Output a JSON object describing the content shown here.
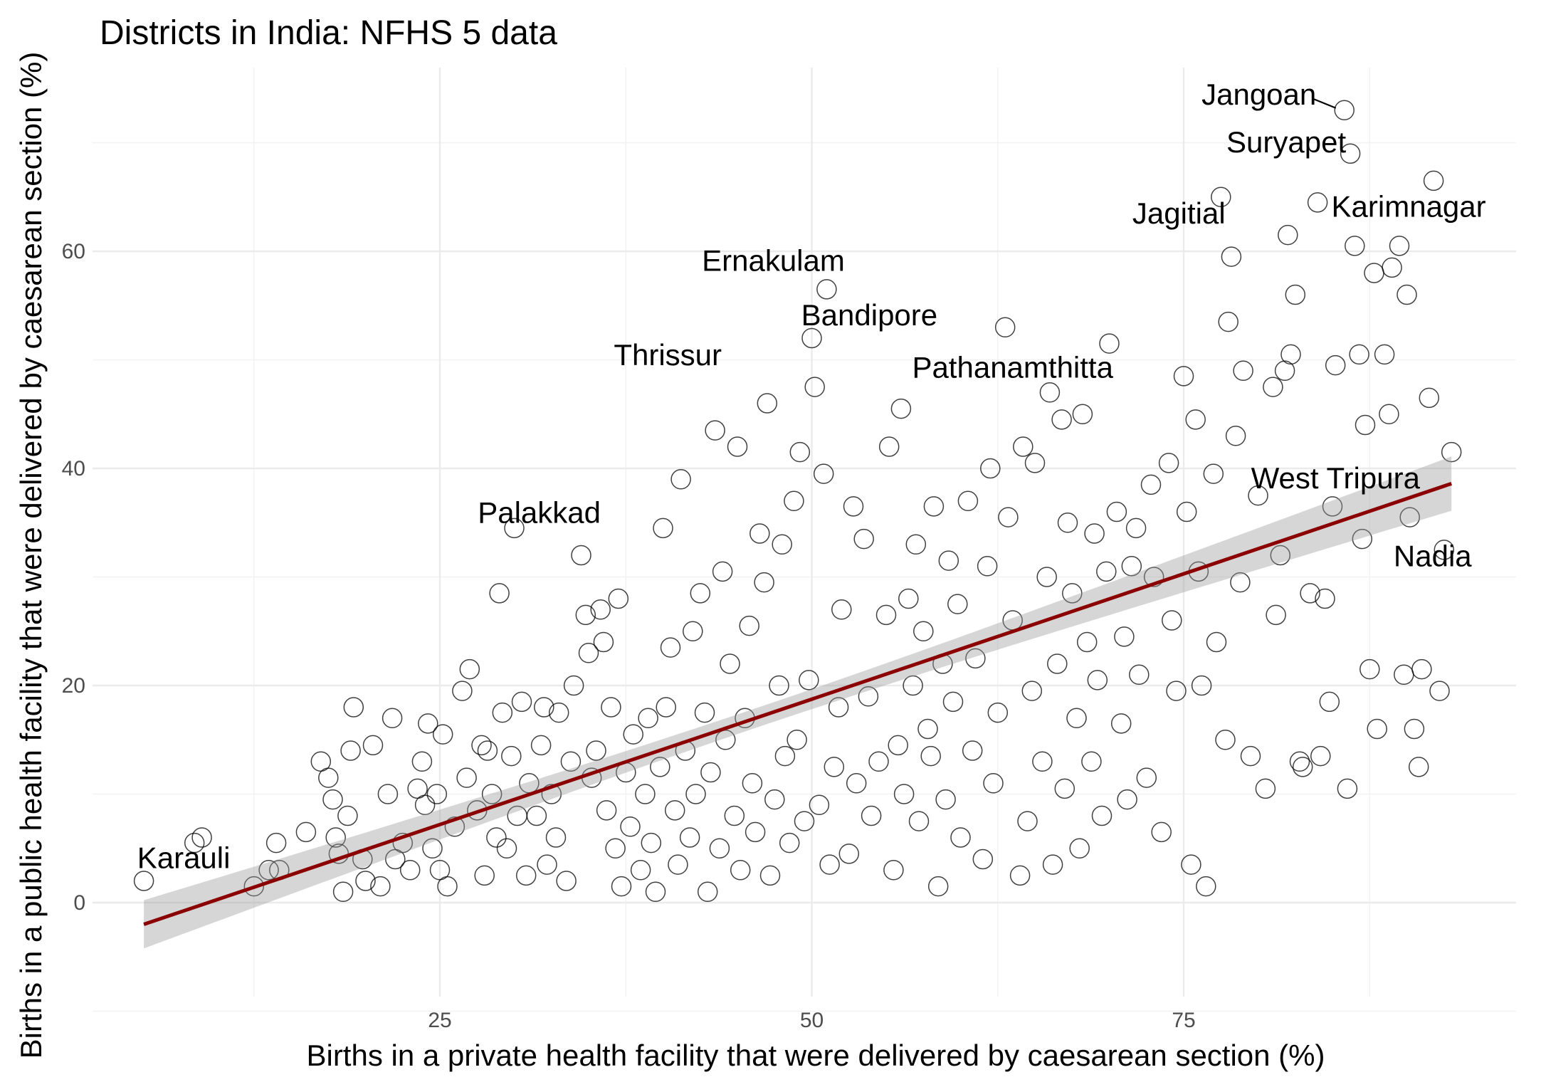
{
  "chart_data": {
    "type": "scatter",
    "title": "Districts in India: NFHS 5 data",
    "xlabel": "Births in a private health facility that were delivered by caesarean section (%)",
    "ylabel": "Births in a public health facility that were delivered by caesarean section (%)",
    "xlim": [
      5,
      95
    ],
    "ylim": [
      -10,
      77
    ],
    "x_ticks": [
      25,
      50,
      75
    ],
    "y_ticks": [
      0,
      20,
      40,
      60
    ],
    "grid": true,
    "trend": {
      "method": "linear regression with confidence band",
      "color": "#8b0000",
      "x_range": [
        5.1,
        93.0
      ],
      "y_at_start": -2.0,
      "y_at_end": 38.6,
      "band_halfwidth_at_ends": 2.5,
      "band_halfwidth_at_mean": 0.9,
      "x_mean": 46
    },
    "labels": [
      {
        "text": "Jangoan",
        "x": 85.8,
        "y": 73.0
      },
      {
        "text": "Suryapet",
        "x": 86.2,
        "y": 69.0
      },
      {
        "text": "Karimnagar",
        "x": 84.0,
        "y": 64.5
      },
      {
        "text": "Jagitial",
        "x": 77.5,
        "y": 65.0
      },
      {
        "text": "Ernakulam",
        "x": 50.0,
        "y": 56.5
      },
      {
        "text": "Bandipore",
        "x": 61.0,
        "y": 53.0
      },
      {
        "text": "Pathanamthitta",
        "x": 68.0,
        "y": 51.5
      },
      {
        "text": "Thrissur",
        "x": 43.0,
        "y": 52.0
      },
      {
        "text": "Palakkad",
        "x": 29.0,
        "y": 35.0
      },
      {
        "text": "West Tripura",
        "x": 92.0,
        "y": 41.0
      },
      {
        "text": "Nadia",
        "x": 91.5,
        "y": 32.5
      },
      {
        "text": "Karauli",
        "x": 5.1,
        "y": 2.0
      }
    ],
    "points": [
      [
        5.1,
        2.0
      ],
      [
        8.5,
        5.5
      ],
      [
        9.0,
        6.0
      ],
      [
        12.5,
        1.5
      ],
      [
        13.5,
        3.0
      ],
      [
        14.0,
        5.5
      ],
      [
        14.2,
        3.0
      ],
      [
        16.0,
        6.5
      ],
      [
        17.0,
        13.0
      ],
      [
        17.5,
        11.5
      ],
      [
        17.8,
        9.5
      ],
      [
        18.0,
        6.0
      ],
      [
        18.2,
        4.5
      ],
      [
        18.5,
        1.0
      ],
      [
        18.8,
        8.0
      ],
      [
        19.0,
        14.0
      ],
      [
        19.2,
        18.0
      ],
      [
        19.8,
        4.0
      ],
      [
        20.0,
        2.0
      ],
      [
        20.5,
        14.5
      ],
      [
        21.0,
        1.5
      ],
      [
        21.5,
        10.0
      ],
      [
        21.8,
        17.0
      ],
      [
        22.0,
        4.0
      ],
      [
        22.5,
        5.5
      ],
      [
        23.0,
        3.0
      ],
      [
        23.5,
        10.5
      ],
      [
        23.8,
        13.0
      ],
      [
        24.0,
        9.0
      ],
      [
        24.2,
        16.5
      ],
      [
        24.5,
        5.0
      ],
      [
        24.8,
        10.0
      ],
      [
        25.0,
        3.0
      ],
      [
        25.2,
        15.5
      ],
      [
        25.5,
        1.5
      ],
      [
        26.0,
        7.0
      ],
      [
        26.5,
        19.5
      ],
      [
        26.8,
        11.5
      ],
      [
        27.0,
        21.5
      ],
      [
        27.5,
        8.5
      ],
      [
        27.8,
        14.5
      ],
      [
        28.0,
        2.5
      ],
      [
        28.2,
        14.0
      ],
      [
        28.5,
        10.0
      ],
      [
        28.8,
        6.0
      ],
      [
        29.0,
        28.5
      ],
      [
        29.2,
        17.5
      ],
      [
        29.5,
        5.0
      ],
      [
        29.8,
        13.5
      ],
      [
        30.0,
        34.5
      ],
      [
        30.2,
        8.0
      ],
      [
        30.5,
        18.5
      ],
      [
        30.8,
        2.5
      ],
      [
        31.0,
        11.0
      ],
      [
        31.5,
        8.0
      ],
      [
        31.8,
        14.5
      ],
      [
        32.0,
        18.0
      ],
      [
        32.2,
        3.5
      ],
      [
        32.5,
        10.0
      ],
      [
        32.8,
        6.0
      ],
      [
        33.0,
        17.5
      ],
      [
        33.5,
        2.0
      ],
      [
        33.8,
        13.0
      ],
      [
        34.0,
        20.0
      ],
      [
        34.5,
        32.0
      ],
      [
        34.8,
        26.5
      ],
      [
        35.0,
        23.0
      ],
      [
        35.2,
        11.5
      ],
      [
        35.5,
        14.0
      ],
      [
        35.8,
        27.0
      ],
      [
        36.0,
        24.0
      ],
      [
        36.2,
        8.5
      ],
      [
        36.5,
        18.0
      ],
      [
        36.8,
        5.0
      ],
      [
        37.0,
        28.0
      ],
      [
        37.2,
        1.5
      ],
      [
        37.5,
        12.0
      ],
      [
        37.8,
        7.0
      ],
      [
        38.0,
        15.5
      ],
      [
        38.5,
        3.0
      ],
      [
        38.8,
        10.0
      ],
      [
        39.0,
        17.0
      ],
      [
        39.2,
        5.5
      ],
      [
        39.5,
        1.0
      ],
      [
        39.8,
        12.5
      ],
      [
        40.0,
        34.5
      ],
      [
        40.2,
        18.0
      ],
      [
        40.5,
        23.5
      ],
      [
        40.8,
        8.5
      ],
      [
        41.0,
        3.5
      ],
      [
        41.2,
        39.0
      ],
      [
        41.5,
        14.0
      ],
      [
        41.8,
        6.0
      ],
      [
        42.0,
        25.0
      ],
      [
        42.2,
        10.0
      ],
      [
        42.5,
        28.5
      ],
      [
        42.8,
        17.5
      ],
      [
        43.0,
        1.0
      ],
      [
        43.2,
        12.0
      ],
      [
        43.5,
        43.5
      ],
      [
        43.8,
        5.0
      ],
      [
        44.0,
        30.5
      ],
      [
        44.2,
        15.0
      ],
      [
        44.5,
        22.0
      ],
      [
        44.8,
        8.0
      ],
      [
        45.0,
        42.0
      ],
      [
        45.2,
        3.0
      ],
      [
        45.5,
        17.0
      ],
      [
        45.8,
        25.5
      ],
      [
        46.0,
        11.0
      ],
      [
        46.2,
        6.5
      ],
      [
        46.5,
        34.0
      ],
      [
        46.8,
        29.5
      ],
      [
        47.0,
        46.0
      ],
      [
        47.2,
        2.5
      ],
      [
        47.5,
        9.5
      ],
      [
        47.8,
        20.0
      ],
      [
        48.0,
        33.0
      ],
      [
        48.2,
        13.5
      ],
      [
        48.5,
        5.5
      ],
      [
        48.8,
        37.0
      ],
      [
        49.0,
        15.0
      ],
      [
        49.2,
        41.5
      ],
      [
        49.5,
        7.5
      ],
      [
        49.8,
        20.5
      ],
      [
        50.0,
        52.0
      ],
      [
        50.2,
        47.5
      ],
      [
        50.5,
        9.0
      ],
      [
        50.8,
        39.5
      ],
      [
        51.0,
        56.5
      ],
      [
        51.2,
        3.5
      ],
      [
        51.5,
        12.5
      ],
      [
        51.8,
        18.0
      ],
      [
        52.0,
        27.0
      ],
      [
        52.5,
        4.5
      ],
      [
        52.8,
        36.5
      ],
      [
        53.0,
        11.0
      ],
      [
        53.5,
        33.5
      ],
      [
        53.8,
        19.0
      ],
      [
        54.0,
        8.0
      ],
      [
        54.5,
        13.0
      ],
      [
        55.0,
        26.5
      ],
      [
        55.2,
        42.0
      ],
      [
        55.5,
        3.0
      ],
      [
        55.8,
        14.5
      ],
      [
        56.0,
        45.5
      ],
      [
        56.2,
        10.0
      ],
      [
        56.5,
        28.0
      ],
      [
        56.8,
        20.0
      ],
      [
        57.0,
        33.0
      ],
      [
        57.2,
        7.5
      ],
      [
        57.5,
        25.0
      ],
      [
        57.8,
        16.0
      ],
      [
        58.0,
        13.5
      ],
      [
        58.2,
        36.5
      ],
      [
        58.5,
        1.5
      ],
      [
        58.8,
        22.0
      ],
      [
        59.0,
        9.5
      ],
      [
        59.2,
        31.5
      ],
      [
        59.5,
        18.5
      ],
      [
        59.8,
        27.5
      ],
      [
        60.0,
        6.0
      ],
      [
        60.5,
        37.0
      ],
      [
        60.8,
        14.0
      ],
      [
        61.0,
        22.5
      ],
      [
        61.5,
        4.0
      ],
      [
        61.8,
        31.0
      ],
      [
        62.0,
        40.0
      ],
      [
        62.2,
        11.0
      ],
      [
        62.5,
        17.5
      ],
      [
        63.0,
        53.0
      ],
      [
        63.2,
        35.5
      ],
      [
        63.5,
        26.0
      ],
      [
        64.0,
        2.5
      ],
      [
        64.2,
        42.0
      ],
      [
        64.5,
        7.5
      ],
      [
        64.8,
        19.5
      ],
      [
        65.0,
        40.5
      ],
      [
        65.5,
        13.0
      ],
      [
        65.8,
        30.0
      ],
      [
        66.0,
        47.0
      ],
      [
        66.2,
        3.5
      ],
      [
        66.5,
        22.0
      ],
      [
        66.8,
        44.5
      ],
      [
        67.0,
        10.5
      ],
      [
        67.2,
        35.0
      ],
      [
        67.5,
        28.5
      ],
      [
        67.8,
        17.0
      ],
      [
        68.0,
        5.0
      ],
      [
        68.2,
        45.0
      ],
      [
        68.5,
        24.0
      ],
      [
        68.8,
        13.0
      ],
      [
        69.0,
        34.0
      ],
      [
        69.2,
        20.5
      ],
      [
        69.5,
        8.0
      ],
      [
        69.8,
        30.5
      ],
      [
        70.0,
        51.5
      ],
      [
        70.5,
        36.0
      ],
      [
        70.8,
        16.5
      ],
      [
        71.0,
        24.5
      ],
      [
        71.2,
        9.5
      ],
      [
        71.5,
        31.0
      ],
      [
        71.8,
        34.5
      ],
      [
        72.0,
        21.0
      ],
      [
        72.5,
        11.5
      ],
      [
        72.8,
        38.5
      ],
      [
        73.0,
        30.0
      ],
      [
        73.5,
        6.5
      ],
      [
        74.0,
        40.5
      ],
      [
        74.2,
        26.0
      ],
      [
        74.5,
        19.5
      ],
      [
        75.0,
        48.5
      ],
      [
        75.2,
        36.0
      ],
      [
        75.5,
        3.5
      ],
      [
        75.8,
        44.5
      ],
      [
        76.0,
        30.5
      ],
      [
        76.2,
        20.0
      ],
      [
        76.5,
        1.5
      ],
      [
        77.0,
        39.5
      ],
      [
        77.2,
        24.0
      ],
      [
        77.5,
        65.0
      ],
      [
        77.8,
        15.0
      ],
      [
        78.0,
        53.5
      ],
      [
        78.2,
        59.5
      ],
      [
        78.5,
        43.0
      ],
      [
        78.8,
        29.5
      ],
      [
        79.0,
        49.0
      ],
      [
        79.5,
        13.5
      ],
      [
        80.0,
        37.5
      ],
      [
        80.5,
        10.5
      ],
      [
        81.0,
        47.5
      ],
      [
        81.2,
        26.5
      ],
      [
        81.5,
        32.0
      ],
      [
        81.8,
        49.0
      ],
      [
        82.0,
        61.5
      ],
      [
        82.2,
        50.5
      ],
      [
        82.5,
        56.0
      ],
      [
        82.8,
        13.0
      ],
      [
        83.0,
        12.5
      ],
      [
        83.5,
        28.5
      ],
      [
        84.0,
        64.5
      ],
      [
        84.2,
        13.5
      ],
      [
        84.5,
        28.0
      ],
      [
        84.8,
        18.5
      ],
      [
        85.0,
        36.5
      ],
      [
        85.2,
        49.5
      ],
      [
        85.8,
        73.0
      ],
      [
        86.0,
        10.5
      ],
      [
        86.2,
        69.0
      ],
      [
        86.5,
        60.5
      ],
      [
        86.8,
        50.5
      ],
      [
        87.0,
        33.5
      ],
      [
        87.2,
        44.0
      ],
      [
        87.5,
        21.5
      ],
      [
        87.8,
        58.0
      ],
      [
        88.0,
        16.0
      ],
      [
        88.5,
        50.5
      ],
      [
        88.8,
        45.0
      ],
      [
        89.0,
        58.5
      ],
      [
        89.5,
        60.5
      ],
      [
        89.8,
        21.0
      ],
      [
        90.0,
        56.0
      ],
      [
        90.2,
        35.5
      ],
      [
        90.5,
        16.0
      ],
      [
        90.8,
        12.5
      ],
      [
        91.0,
        21.5
      ],
      [
        91.5,
        46.5
      ],
      [
        91.8,
        66.5
      ],
      [
        92.2,
        19.5
      ],
      [
        92.5,
        32.5
      ],
      [
        93.0,
        41.5
      ]
    ]
  }
}
